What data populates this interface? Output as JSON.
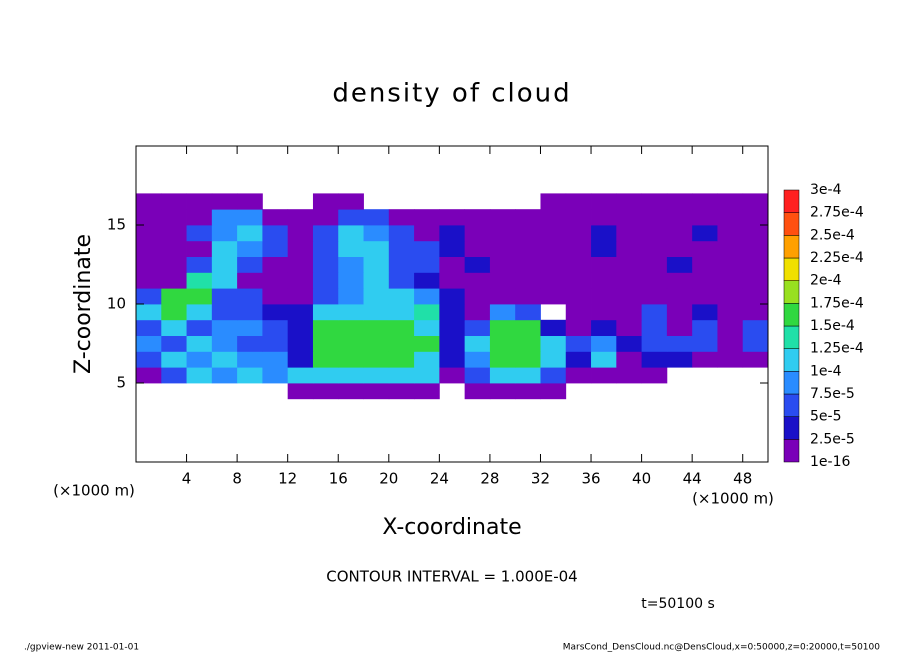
{
  "chart_data": {
    "type": "contour",
    "title": "density of cloud",
    "x_label": "X-coordinate",
    "y_label": "Z-coordinate",
    "x_unit": "(×1000 m)",
    "y_unit": "(×1000 m)",
    "annotation": "CONTOUR INTERVAL = 1.000E-04",
    "time_label": "t=50100 s",
    "footer_left": "./gpview-new  2011-01-01",
    "footer_right": "MarsCond_DensCloud.nc@DensCloud,x=0:50000,z=0:20000,t=50100",
    "xlim": [
      0,
      50
    ],
    "ylim": [
      0,
      20
    ],
    "xticks": [
      4,
      8,
      12,
      16,
      20,
      24,
      28,
      32,
      36,
      40,
      44,
      48
    ],
    "yticks": [
      5,
      10,
      15
    ],
    "levels": [
      {
        "value": 1e-16,
        "label": "1e-16"
      },
      {
        "value": 2.5e-05,
        "label": "2.5e-5"
      },
      {
        "value": 5e-05,
        "label": "5e-5"
      },
      {
        "value": 7.5e-05,
        "label": "7.5e-5"
      },
      {
        "value": 0.0001,
        "label": "1e-4"
      },
      {
        "value": 0.000125,
        "label": "1.25e-4"
      },
      {
        "value": 0.00015,
        "label": "1.5e-4"
      },
      {
        "value": 0.000175,
        "label": "1.75e-4"
      },
      {
        "value": 0.0002,
        "label": "2e-4"
      },
      {
        "value": 0.000225,
        "label": "2.25e-4"
      },
      {
        "value": 0.00025,
        "label": "2.5e-4"
      },
      {
        "value": 0.000275,
        "label": "2.75e-4"
      },
      {
        "value": 0.0003,
        "label": "3e-4"
      }
    ],
    "colors": [
      "#7a00b8",
      "#1a10c8",
      "#2a4cf0",
      "#2a8cff",
      "#30ccf0",
      "#20e0a8",
      "#30d840",
      "#98e020",
      "#f0e000",
      "#ffa000",
      "#ff5010",
      "#ff2020"
    ],
    "x": [
      1,
      3,
      5,
      7,
      9,
      11,
      13,
      15,
      17,
      19,
      21,
      23,
      25,
      27,
      29,
      31,
      33,
      35,
      37,
      39,
      41,
      43,
      45,
      47,
      49
    ],
    "y": [
      4.5,
      5.5,
      6.5,
      7.5,
      8.5,
      9.5,
      10.5,
      11.5,
      12.5,
      13.5,
      14.5,
      15.5,
      16.5,
      17.5
    ],
    "z": [
      [
        null,
        null,
        null,
        null,
        null,
        null,
        1e-05,
        1e-05,
        1e-05,
        1e-05,
        1e-05,
        1e-05,
        null,
        1e-05,
        1e-05,
        1e-05,
        1e-05,
        null,
        null,
        null,
        null,
        null,
        null,
        null,
        null
      ],
      [
        1e-05,
        6e-05,
        0.00011,
        8.5e-05,
        0.00011,
        8.5e-05,
        0.00011,
        0.00011,
        0.00011,
        0.00011,
        0.00011,
        0.00011,
        1e-05,
        6e-05,
        0.00011,
        0.00011,
        6e-05,
        1e-05,
        1e-05,
        1e-05,
        1e-05,
        null,
        null,
        null,
        null
      ],
      [
        6e-05,
        0.00011,
        8.5e-05,
        0.00011,
        8.5e-05,
        8.5e-05,
        3.5e-05,
        0.00016,
        0.00016,
        0.00016,
        0.00016,
        0.00011,
        3.5e-05,
        8.5e-05,
        0.00016,
        0.00016,
        0.00011,
        3.5e-05,
        0.00011,
        1e-05,
        3.5e-05,
        3.5e-05,
        1e-05,
        1e-05,
        1e-05
      ],
      [
        8.5e-05,
        6e-05,
        0.00011,
        8.5e-05,
        6e-05,
        6e-05,
        3.5e-05,
        0.00016,
        0.00016,
        0.00016,
        0.00016,
        0.00016,
        3.5e-05,
        0.00011,
        0.00016,
        0.00016,
        0.00011,
        6e-05,
        8.5e-05,
        3.5e-05,
        6e-05,
        6e-05,
        6e-05,
        1e-05,
        6e-05
      ],
      [
        6e-05,
        0.00011,
        6e-05,
        8.5e-05,
        8.5e-05,
        6e-05,
        3.5e-05,
        0.00016,
        0.00016,
        0.00016,
        0.00016,
        0.00011,
        3.5e-05,
        6e-05,
        0.00016,
        0.00016,
        3.5e-05,
        1e-05,
        3.5e-05,
        1e-05,
        6e-05,
        1e-05,
        6e-05,
        1e-05,
        6e-05
      ],
      [
        0.00011,
        0.00016,
        0.00011,
        6e-05,
        6e-05,
        3.5e-05,
        3.5e-05,
        0.00011,
        0.00011,
        0.00011,
        0.00011,
        0.000135,
        3.5e-05,
        1e-05,
        8.5e-05,
        6e-05,
        null,
        1e-05,
        1e-05,
        1e-05,
        6e-05,
        1e-05,
        3.5e-05,
        1e-05,
        1e-05
      ],
      [
        6e-05,
        0.00016,
        0.00016,
        6e-05,
        6e-05,
        1e-05,
        1e-05,
        6e-05,
        8.5e-05,
        0.00011,
        0.00011,
        8.5e-05,
        3.5e-05,
        1e-05,
        1e-05,
        1e-05,
        1e-05,
        1e-05,
        1e-05,
        1e-05,
        1e-05,
        1e-05,
        1e-05,
        1e-05,
        1e-05
      ],
      [
        1e-05,
        1e-05,
        0.000135,
        0.00011,
        1e-05,
        1e-05,
        1e-05,
        6e-05,
        8.5e-05,
        0.00011,
        6e-05,
        3.5e-05,
        1e-05,
        1e-05,
        1e-05,
        1e-05,
        1e-05,
        1e-05,
        1e-05,
        1e-05,
        1e-05,
        1e-05,
        1e-05,
        1e-05,
        1e-05
      ],
      [
        1e-05,
        1e-05,
        6e-05,
        0.00011,
        6e-05,
        1e-05,
        1e-05,
        6e-05,
        8.5e-05,
        0.00011,
        6e-05,
        6e-05,
        1e-05,
        3.5e-05,
        1e-05,
        1e-05,
        1e-05,
        1e-05,
        1e-05,
        1e-05,
        1e-05,
        3.5e-05,
        1e-05,
        1e-05,
        1e-05
      ],
      [
        1e-05,
        1e-05,
        1e-05,
        0.00011,
        8.5e-05,
        6e-05,
        1e-05,
        6e-05,
        0.00011,
        0.00011,
        6e-05,
        6e-05,
        3.5e-05,
        1e-05,
        1e-05,
        1e-05,
        1e-05,
        1e-05,
        3.5e-05,
        1e-05,
        1e-05,
        1e-05,
        1e-05,
        1e-05,
        1e-05
      ],
      [
        1e-05,
        1e-05,
        6e-05,
        8.5e-05,
        0.00011,
        6e-05,
        1e-05,
        6e-05,
        0.00011,
        8.5e-05,
        6e-05,
        1e-05,
        3.5e-05,
        1e-05,
        1e-05,
        1e-05,
        1e-05,
        1e-05,
        3.5e-05,
        1e-05,
        1e-05,
        1e-05,
        3.5e-05,
        1e-05,
        1e-05
      ],
      [
        1e-05,
        1e-05,
        1e-05,
        8.5e-05,
        8.5e-05,
        1e-05,
        1e-05,
        1e-05,
        6e-05,
        6e-05,
        1e-05,
        1e-05,
        1e-05,
        1e-05,
        1e-05,
        1e-05,
        1e-05,
        1e-05,
        1e-05,
        1e-05,
        1e-05,
        1e-05,
        1e-05,
        1e-05,
        1e-05
      ],
      [
        1e-05,
        1e-05,
        1e-05,
        1e-05,
        1e-05,
        null,
        null,
        1e-05,
        1e-05,
        null,
        null,
        null,
        null,
        null,
        null,
        null,
        1e-05,
        1e-05,
        1e-05,
        1e-05,
        1e-05,
        1e-05,
        1e-05,
        1e-05,
        1e-05
      ],
      [
        null,
        null,
        null,
        null,
        null,
        null,
        null,
        null,
        null,
        null,
        null,
        null,
        null,
        null,
        null,
        null,
        null,
        null,
        null,
        null,
        null,
        null,
        null,
        null,
        null
      ]
    ]
  }
}
